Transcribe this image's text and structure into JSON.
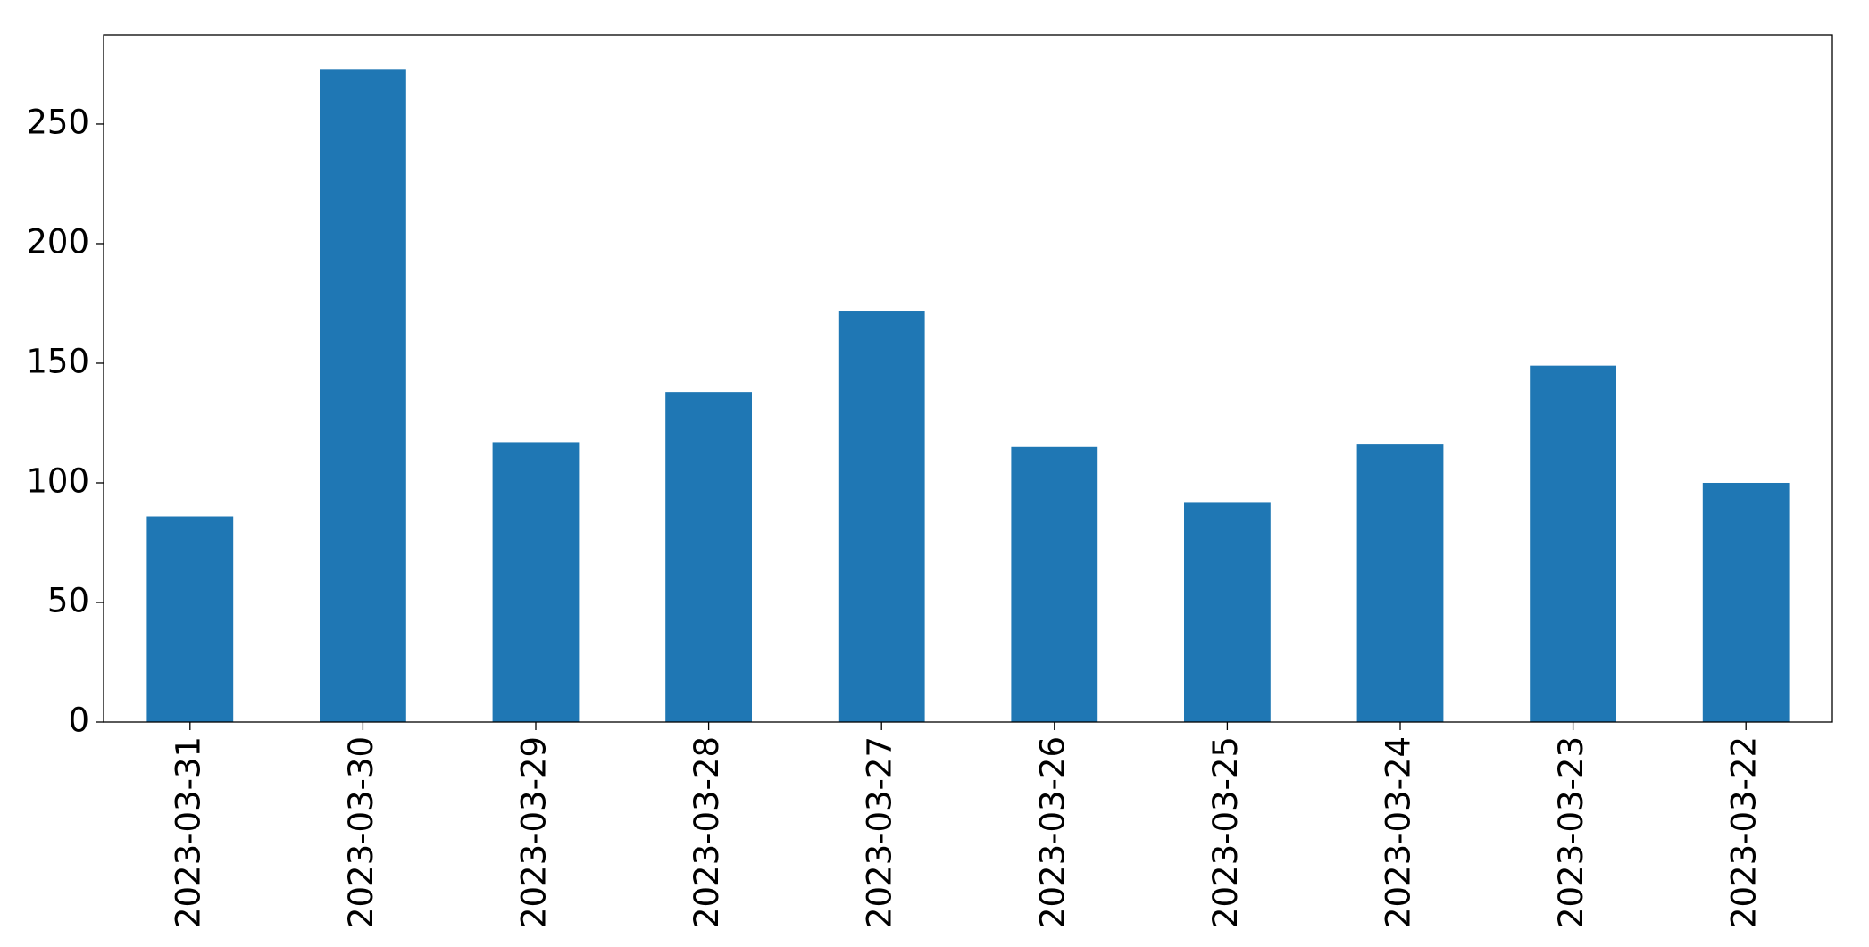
{
  "chart_data": {
    "type": "bar",
    "categories": [
      "2023-03-31",
      "2023-03-30",
      "2023-03-29",
      "2023-03-28",
      "2023-03-27",
      "2023-03-26",
      "2023-03-25",
      "2023-03-24",
      "2023-03-23",
      "2023-03-22"
    ],
    "values": [
      86,
      273,
      117,
      138,
      172,
      115,
      92,
      116,
      149,
      100
    ],
    "color": "#1f77b4",
    "ylim": [
      0,
      287.3
    ],
    "yticks": [
      0,
      50,
      100,
      150,
      200,
      250
    ],
    "grid": false
  }
}
